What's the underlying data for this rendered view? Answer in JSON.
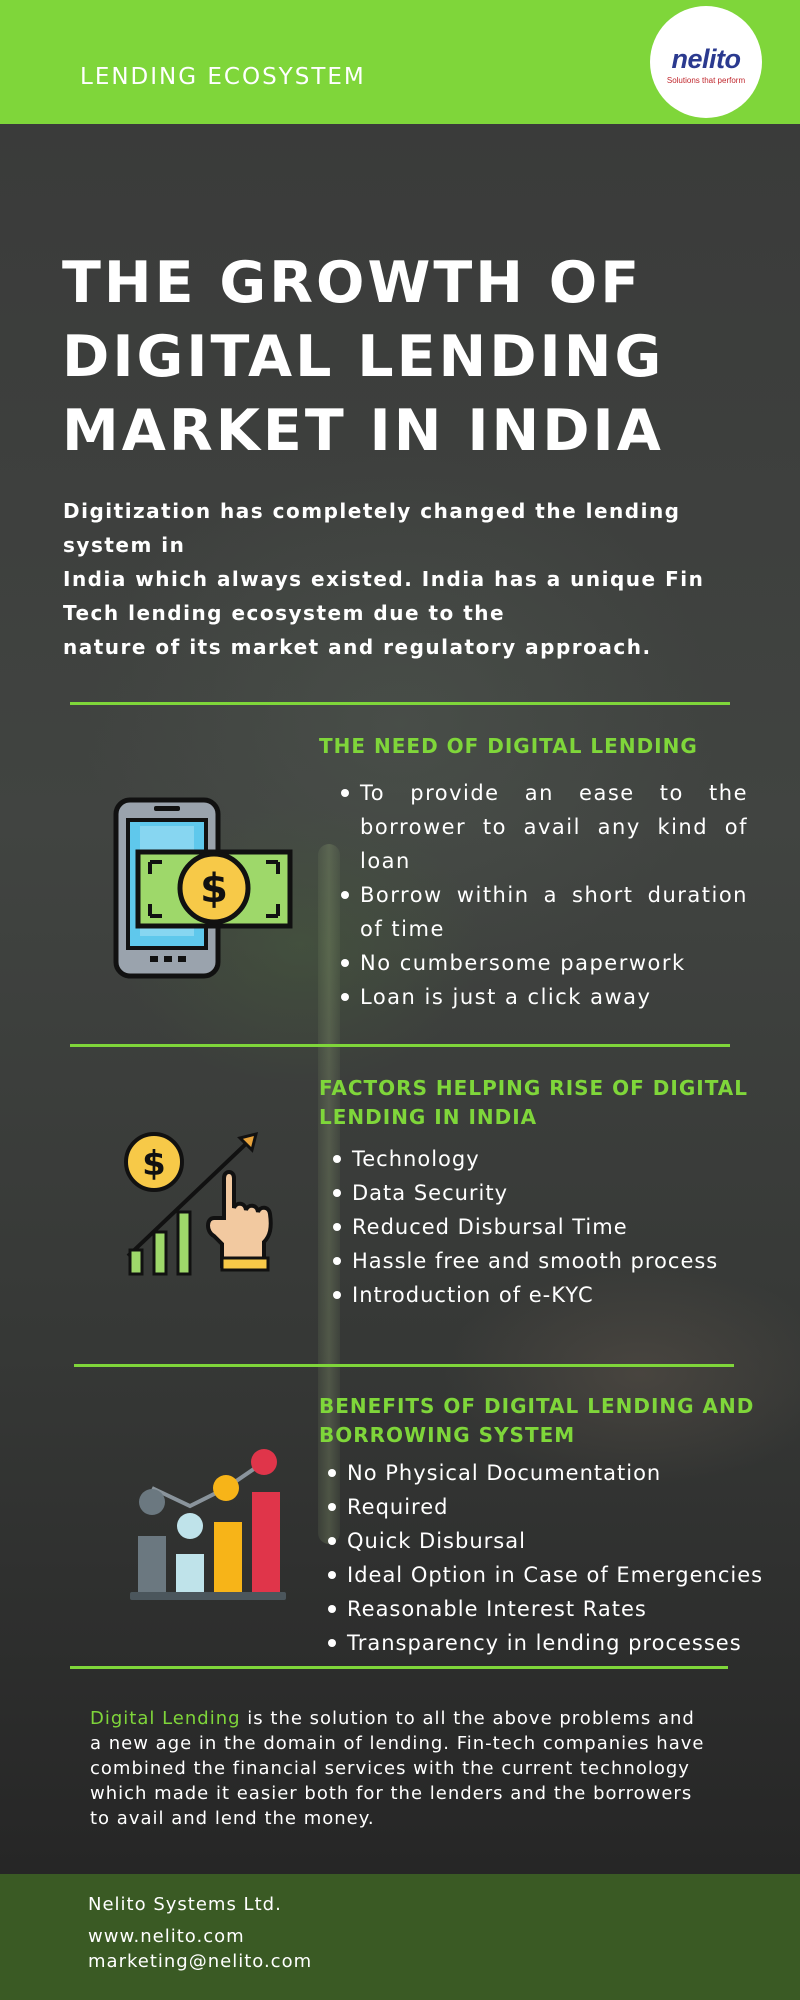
{
  "header": {
    "title": "LENDING ECOSYSTEM",
    "logo_word": "nelito",
    "logo_tagline": "Solutions that perform"
  },
  "hero": {
    "title_lines": [
      "THE GROWTH OF",
      "DIGITAL LENDING",
      "MARKET IN INDIA"
    ],
    "intro_lines": [
      "Digitization has completely changed the lending",
      "system in",
      "India which always existed. India has a unique Fin",
      "Tech lending ecosystem due to the",
      "nature of its market and regulatory approach."
    ]
  },
  "sections": [
    {
      "heading": "THE NEED OF DIGITAL LENDING",
      "icon": "phone-money-icon",
      "bullets": [
        "To provide an ease to the borrower to avail any kind of loan",
        "Borrow within a short duration of time",
        "No cumbersome paperwork",
        "Loan is just a click away"
      ]
    },
    {
      "heading_lines": [
        "FACTORS HELPING RISE OF DIGITAL",
        "LENDING IN INDIA"
      ],
      "icon": "growth-chart-hand-icon",
      "bullets": [
        "Technology",
        "Data Security",
        "Reduced Disbursal Time",
        "Hassle free and smooth process",
        "Introduction of e-KYC"
      ]
    },
    {
      "heading_lines": [
        "BENEFITS OF DIGITAL LENDING AND",
        "BORROWING SYSTEM"
      ],
      "icon": "bar-chart-icon",
      "bullets": [
        "No Physical Documentation",
        "Required",
        "Quick Disbursal",
        "Ideal Option in Case of Emergencies",
        "Reasonable Interest Rates",
        "Transparency in lending processes"
      ]
    }
  ],
  "closing": {
    "highlight": "Digital Lending",
    "line1_rest": " is the solution to all the above problems and",
    "lines": [
      "a new age in the domain of lending. Fin-tech companies have",
      "combined the financial services with the current technology",
      "which made it easier both for the lenders and the borrowers",
      "to avail and lend the money."
    ]
  },
  "footer": {
    "company": "Nelito Systems Ltd.",
    "website": "www.nelito.com",
    "email": "marketing@nelito.com"
  },
  "colors": {
    "accent": "#7fd63a",
    "footer": "#3a5a24",
    "logo_blue": "#2b3a8f",
    "logo_red": "#c0272d"
  }
}
